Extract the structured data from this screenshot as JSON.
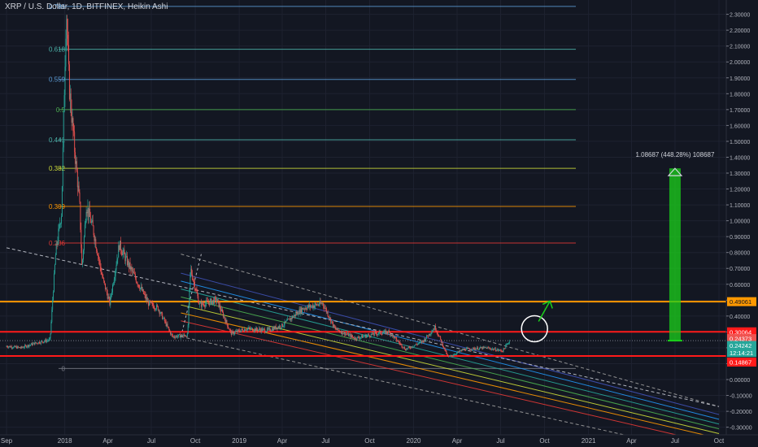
{
  "title": "XRP / U.S. Dollar, 1D, BITFINEX, Heikin Ashi",
  "colors": {
    "background": "#131722",
    "grid": "#1e2230",
    "axis_text": "#b2b5be",
    "candle_up": "#26a69a",
    "candle_down": "#ef5350",
    "red_line": "#ff1a1a",
    "orange_line": "#ff9800",
    "green_arrow": "#1bd11b"
  },
  "chart_data": {
    "type": "candlestick",
    "symbol": "XRP / U.S. Dollar",
    "interval": "1D",
    "exchange": "BITFINEX",
    "style": "Heikin Ashi",
    "y_axis": {
      "range": [
        -0.32,
        2.38
      ],
      "ticks": [
        "2.30000",
        "2.20000",
        "2.10000",
        "2.00000",
        "1.90000",
        "1.80000",
        "1.70000",
        "1.60000",
        "1.50000",
        "1.40000",
        "1.30000",
        "1.20000",
        "1.10000",
        "1.00000",
        "0.90000",
        "0.80000",
        "0.70000",
        "0.60000",
        "0.50000",
        "0.40000",
        "0.30000",
        "0.20000",
        "0.10000",
        "0.00000",
        "-0.10000",
        "-0.20000",
        "-0.30000"
      ]
    },
    "x_axis": {
      "range": [
        "2017-09-01",
        "2021-10-01"
      ],
      "ticks": [
        {
          "date": "2017-09-01",
          "label": "Sep"
        },
        {
          "date": "2018-01-01",
          "label": "2018"
        },
        {
          "date": "2018-04-01",
          "label": "Apr"
        },
        {
          "date": "2018-07-01",
          "label": "Jul"
        },
        {
          "date": "2018-10-01",
          "label": "Oct"
        },
        {
          "date": "2019-01-01",
          "label": "2019"
        },
        {
          "date": "2019-04-01",
          "label": "Apr"
        },
        {
          "date": "2019-07-01",
          "label": "Jul"
        },
        {
          "date": "2019-10-01",
          "label": "Oct"
        },
        {
          "date": "2020-01-01",
          "label": "2020"
        },
        {
          "date": "2020-04-01",
          "label": "Apr"
        },
        {
          "date": "2020-07-01",
          "label": "Jul"
        },
        {
          "date": "2020-10-01",
          "label": "Oct"
        },
        {
          "date": "2021-01-01",
          "label": "2021"
        },
        {
          "date": "2021-04-01",
          "label": "Apr"
        },
        {
          "date": "2021-07-01",
          "label": "Jul"
        },
        {
          "date": "2021-10-01",
          "label": "Oct"
        }
      ]
    },
    "price_path": [
      [
        "2017-09-01",
        0.21
      ],
      [
        "2017-10-01",
        0.2
      ],
      [
        "2017-11-01",
        0.23
      ],
      [
        "2017-12-01",
        0.25
      ],
      [
        "2017-12-13",
        0.8
      ],
      [
        "2017-12-25",
        1.05
      ],
      [
        "2018-01-04",
        2.35
      ],
      [
        "2018-01-10",
        1.85
      ],
      [
        "2018-01-20",
        1.5
      ],
      [
        "2018-02-01",
        1.1
      ],
      [
        "2018-02-06",
        0.7
      ],
      [
        "2018-02-15",
        1.1
      ],
      [
        "2018-03-01",
        0.95
      ],
      [
        "2018-03-20",
        0.65
      ],
      [
        "2018-04-05",
        0.48
      ],
      [
        "2018-04-25",
        0.85
      ],
      [
        "2018-05-10",
        0.75
      ],
      [
        "2018-06-01",
        0.62
      ],
      [
        "2018-06-25",
        0.48
      ],
      [
        "2018-07-15",
        0.45
      ],
      [
        "2018-08-14",
        0.27
      ],
      [
        "2018-09-15",
        0.28
      ],
      [
        "2018-09-21",
        0.7
      ],
      [
        "2018-10-10",
        0.47
      ],
      [
        "2018-11-15",
        0.5
      ],
      [
        "2018-12-15",
        0.29
      ],
      [
        "2019-01-15",
        0.32
      ],
      [
        "2019-03-01",
        0.31
      ],
      [
        "2019-04-01",
        0.34
      ],
      [
        "2019-05-15",
        0.45
      ],
      [
        "2019-06-25",
        0.48
      ],
      [
        "2019-07-20",
        0.32
      ],
      [
        "2019-09-01",
        0.26
      ],
      [
        "2019-10-15",
        0.29
      ],
      [
        "2019-11-10",
        0.3
      ],
      [
        "2019-12-15",
        0.19
      ],
      [
        "2020-01-20",
        0.24
      ],
      [
        "2020-02-15",
        0.33
      ],
      [
        "2020-03-13",
        0.14
      ],
      [
        "2020-04-15",
        0.19
      ],
      [
        "2020-06-01",
        0.2
      ],
      [
        "2020-07-05",
        0.18
      ],
      [
        "2020-07-20",
        0.245
      ]
    ],
    "fibonacci_levels": [
      {
        "ratio": "0.786",
        "price": 2.35,
        "color": "#5b9bd5"
      },
      {
        "ratio": "0.618",
        "price": 2.08,
        "color": "#4db6ac"
      },
      {
        "ratio": "0.559",
        "price": 1.89,
        "color": "#5b9bd5"
      },
      {
        "ratio": "0.5",
        "price": 1.7,
        "color": "#4caf50"
      },
      {
        "ratio": "0.441",
        "price": 1.51,
        "color": "#4db6ac"
      },
      {
        "ratio": "0.382",
        "price": 1.33,
        "color": "#cddc39"
      },
      {
        "ratio": "0.309",
        "price": 1.09,
        "color": "#ff9800"
      },
      {
        "ratio": "0.236",
        "price": 0.86,
        "color": "#e53935"
      },
      {
        "ratio": "0",
        "price": 0.07,
        "color": "#787b86"
      }
    ],
    "horizontal_lines": [
      {
        "price": 0.49061,
        "color": "#ff9800"
      },
      {
        "price": 0.30064,
        "color": "#ff1a1a"
      },
      {
        "price": 0.14867,
        "color": "#ff1a1a"
      }
    ],
    "channel": {
      "upper_outer": [
        [
          "2017-09-01",
          0.83
        ],
        [
          "2021-10-01",
          -0.17
        ]
      ],
      "start_date": "2018-09-01",
      "end_date": "2021-10-01",
      "lines": [
        {
          "start": 0.79,
          "end": -0.17,
          "color": "#9e9e9e",
          "dashed": true
        },
        {
          "start": 0.67,
          "end": -0.22,
          "color": "#3f51b5",
          "dashed": false
        },
        {
          "start": 0.62,
          "end": -0.25,
          "color": "#2196f3",
          "dashed": false
        },
        {
          "start": 0.57,
          "end": -0.28,
          "color": "#26a69a",
          "dashed": false
        },
        {
          "start": 0.52,
          "end": -0.31,
          "color": "#4caf50",
          "dashed": false
        },
        {
          "start": 0.47,
          "end": -0.34,
          "color": "#cddc39",
          "dashed": false
        },
        {
          "start": 0.42,
          "end": -0.37,
          "color": "#ff9800",
          "dashed": false
        },
        {
          "start": 0.37,
          "end": -0.41,
          "color": "#e53935",
          "dashed": false
        },
        {
          "start": 0.27,
          "end": -0.48,
          "color": "#9e9e9e",
          "dashed": true
        }
      ]
    },
    "projection": {
      "date": "2021-07-01",
      "from_price": 0.245,
      "to_price": 1.33,
      "label": "1.08687 (448.28%) 108687"
    },
    "circle_annotation": {
      "date": "2020-09-10",
      "price": 0.32
    },
    "price_labels": [
      {
        "value": "0.49061",
        "price": 0.49061,
        "bg": "#ff9800",
        "fg": "#131722"
      },
      {
        "value": "0.30064",
        "price": 0.30064,
        "bg": "#ff1a1a",
        "fg": "#ffffff"
      },
      {
        "value": "0.24373",
        "price": 0.258,
        "bg": "#ef5350",
        "fg": "#ffffff"
      },
      {
        "value": "0.24242",
        "price": 0.215,
        "bg": "#26a69a",
        "fg": "#ffffff"
      },
      {
        "value": "12:14:21",
        "price": 0.17,
        "bg": "#26a69a",
        "fg": "#ffffff"
      },
      {
        "value": "0.14867",
        "price": 0.11,
        "bg": "#ff1a1a",
        "fg": "#ffffff"
      }
    ]
  }
}
